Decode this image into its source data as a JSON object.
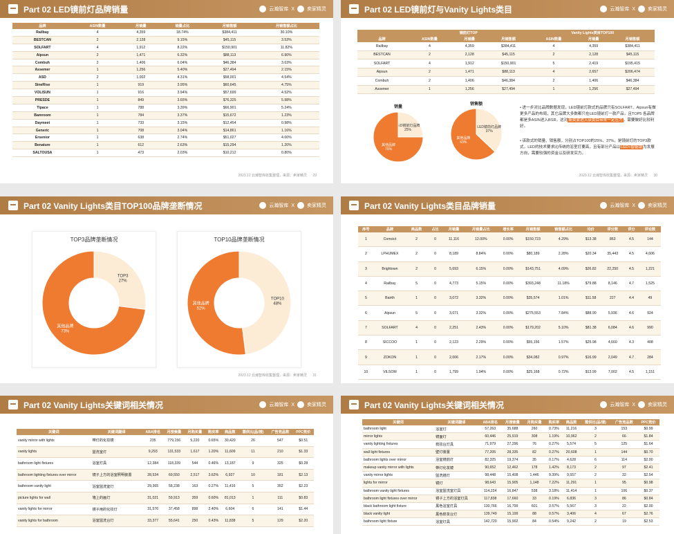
{
  "common": {
    "logo1": "云瀚智库",
    "sep": "X",
    "logo2": "卖家精灵",
    "footer": "2023.12 云瀚智库收集整理，来源：卖家精灵"
  },
  "slide1": {
    "title": "Part 02 LED镜前灯品牌销量",
    "page": "29",
    "headers": [
      "品牌",
      "ASIN数量",
      "月销量",
      "销量占比",
      "月销售额",
      "月销售额占比"
    ],
    "rows": [
      [
        "Railbay",
        "4",
        "4,359",
        "18.74%",
        "$384,411",
        "30.10%"
      ],
      [
        "BESTCAN",
        "2",
        "2,128",
        "9.15%",
        "$45,115",
        "3.53%"
      ],
      [
        "SOLFART",
        "4",
        "1,912",
        "8.22%",
        "$150,901",
        "11.82%"
      ],
      [
        "Aipsun",
        "2",
        "1,471",
        "6.32%",
        "$88,113",
        "6.90%"
      ],
      [
        "Combuh",
        "2",
        "1,406",
        "6.04%",
        "$46,384",
        "3.63%"
      ],
      [
        "Assemer",
        "1",
        "1,256",
        "5.40%",
        "$27,494",
        "2.15%"
      ],
      [
        "ASD",
        "2",
        "1,002",
        "4.31%",
        "$58,001",
        "4.54%"
      ],
      [
        "SineRise",
        "1",
        "919",
        "3.95%",
        "$60,645",
        "4.75%"
      ],
      [
        "VOLISUN",
        "1",
        "916",
        "3.94%",
        "$57,699",
        "4.52%"
      ],
      [
        "PRESDE",
        "1",
        "849",
        "3.65%",
        "$76,325",
        "5.98%"
      ],
      [
        "Tipace",
        "1",
        "788",
        "3.39%",
        "$66,901",
        "5.24%"
      ],
      [
        "Bamroom",
        "1",
        "784",
        "3.37%",
        "$15,672",
        "1.23%"
      ],
      [
        "Daymeet",
        "1",
        "733",
        "3.15%",
        "$12,454",
        "0.98%"
      ],
      [
        "Generic",
        "1",
        "708",
        "3.04%",
        "$14,861",
        "1.16%"
      ],
      [
        "Ersenior",
        "1",
        "638",
        "2.74%",
        "$51,027",
        "4.00%"
      ],
      [
        "Benature",
        "1",
        "612",
        "2.63%",
        "$15,294",
        "1.20%"
      ],
      [
        "SALTOUSA",
        "1",
        "473",
        "2.03%",
        "$10,212",
        "0.80%"
      ]
    ]
  },
  "slide2": {
    "title": "Part 02 LED镜前灯与Vanity Lights类目",
    "page": "30",
    "group1": "镜前灯TOP",
    "group2": "Vanity Lights类目TOP100",
    "headers": [
      "品牌",
      "ASIN数量",
      "月销量",
      "月销售额",
      "ASIN数量",
      "月销量",
      "月销售额"
    ],
    "rows": [
      [
        "Railbay",
        "4",
        "4,359",
        "$384,411",
        "4",
        "4,359",
        "$384,411"
      ],
      [
        "BESTCAN",
        "2",
        "2,128",
        "$45,115",
        "2",
        "2,128",
        "$45,115"
      ],
      [
        "SOLFART",
        "4",
        "1,912",
        "$150,901",
        "5",
        "2,419",
        "$195,415"
      ],
      [
        "Aipsun",
        "2",
        "1,471",
        "$88,113",
        "4",
        "2,657",
        "$206,474"
      ],
      [
        "Combuh",
        "2",
        "1,406",
        "$46,384",
        "2",
        "1,406",
        "$46,384"
      ],
      [
        "Assemer",
        "1",
        "1,256",
        "$27,494",
        "1",
        "1,256",
        "$27,494"
      ]
    ],
    "pie1_title": "销量",
    "pie2_title": "销售额",
    "pie1": [
      {
        "label": "LED镜前灯品牌",
        "value": 25
      },
      {
        "label": "其他品牌",
        "value": 75
      }
    ],
    "pie2": [
      {
        "label": "LED镜前灯品牌",
        "value": 37
      },
      {
        "label": "其他品牌",
        "value": 63
      }
    ],
    "bullet1": "进一步对比品牌数据发现，LED镜前灯款式的品牌只有SOLFART、Aipsun有做更多产品的布局，其它品牌大多数都只在LED镜前灯一款产品，且TOP5 各品牌都是多ASIN进入BSR，这对",
    "bullet1_hl": "新卖家进入该类目带来一定压力",
    "bullet1_end": "，需要做好比较利好。",
    "bullet2": "该款式的销量、销售额，分别占TOP100的25%、37%，是镜前灯的TOP3款式，LED的技术要求比传统的浴室灯要高，且有部分产品以",
    "bullet2_hl": "LED+智能镜",
    "bullet2_end": "为发展方向，需要较强的资金以及研发实力。"
  },
  "slide3": {
    "title": "Part 02 Vanity Lights类目TOP100品牌垄断情况",
    "page": "31",
    "chart_data": [
      {
        "type": "pie",
        "title": "TOP3品牌垄断情况",
        "slices": [
          {
            "label": "TOP3",
            "value": 27,
            "color": "#fcecd6"
          },
          {
            "label": "其他品牌",
            "value": 73,
            "color": "#ee7b30"
          }
        ]
      },
      {
        "type": "pie",
        "title": "TOP10品牌垄断情况",
        "slices": [
          {
            "label": "TOP10",
            "value": 48,
            "color": "#fcecd6"
          },
          {
            "label": "其他品牌",
            "value": 52,
            "color": "#ee7b30"
          }
        ]
      }
    ]
  },
  "slide4": {
    "title": "Part 02 Vanity Lights类目品牌销量",
    "page": "32",
    "headers": [
      "序号",
      "品牌",
      "商品数",
      "占比",
      "月销量",
      "月销量占比",
      "增长率",
      "月销售额",
      "销售额占比",
      "均价",
      "评分数",
      "评分",
      "评论数"
    ],
    "rows": [
      [
        "1",
        "Comcict",
        "2",
        "0",
        "11,116",
        "12.00%",
        "0.00%",
        "$150,723",
        "4.29%",
        "$13.38",
        "863",
        "4.5",
        "144"
      ],
      [
        "2",
        "LPHUMEX",
        "2",
        "0",
        "8,189",
        "8.84%",
        "0.00%",
        "$80,189",
        "2.28%",
        "$20.34",
        "35,443",
        "4.5",
        "4,606"
      ],
      [
        "3",
        "Brightown",
        "2",
        "0",
        "5,693",
        "6.15%",
        "0.00%",
        "$143,751",
        "4.09%",
        "$26.82",
        "22,250",
        "4.5",
        "1,221"
      ],
      [
        "4",
        "Railbay",
        "5",
        "0",
        "4,773",
        "5.15%",
        "0.00%",
        "$393,248",
        "11.18%",
        "$79.88",
        "8,146",
        "4.7",
        "1,525"
      ],
      [
        "5",
        "Bairth",
        "1",
        "0",
        "3,072",
        "3.32%",
        "0.00%",
        "$35,574",
        "1.01%",
        "$11.58",
        "227",
        "4.4",
        "49"
      ],
      [
        "6",
        "Aipsun",
        "5",
        "0",
        "3,071",
        "3.32%",
        "0.00%",
        "$275,553",
        "7.84%",
        "$88.90",
        "5,936",
        "4.6",
        "924"
      ],
      [
        "7",
        "SOLFART",
        "4",
        "0",
        "2,251",
        "2.43%",
        "0.00%",
        "$179,202",
        "5.10%",
        "$81.38",
        "6,084",
        "4.6",
        "990"
      ],
      [
        "8",
        "SICCOO",
        "1",
        "0",
        "2,123",
        "2.29%",
        "0.00%",
        "$55,156",
        "1.57%",
        "$25.98",
        "4,660",
        "4.3",
        "408"
      ],
      [
        "9",
        "ZOKON",
        "1",
        "0",
        "2,006",
        "2.17%",
        "0.00%",
        "$34,082",
        "0.97%",
        "$16.99",
        "2,049",
        "4.7",
        "284"
      ],
      [
        "10",
        "VILSOM",
        "1",
        "0",
        "1,799",
        "1.94%",
        "0.00%",
        "$25,168",
        "0.72%",
        "$13.99",
        "7,002",
        "4.5",
        "1,151"
      ]
    ]
  },
  "slide5": {
    "title": "Part 02 Vanity Lights关键词相关情况",
    "headers": [
      "关键词",
      "关键词翻译",
      "ABA排名",
      "月搜索量",
      "月购买量",
      "购买率",
      "商品数",
      "需供比(品/搜)",
      "广告竞品数",
      "PPC竞价"
    ],
    "rows": [
      [
        "vanity mirror with lights",
        "带灯的化妆镜",
        "235",
        "779,156",
        "5,220",
        "0.65%",
        "30,420",
        "26",
        "547",
        "$0.51"
      ],
      [
        "vanity lights",
        "盥洗室灯",
        "9,293",
        "131,533",
        "1,617",
        "1.20%",
        "11,609",
        "11",
        "210",
        "$1.33"
      ],
      [
        "bathroom light fixtures",
        "浴室灯具",
        "12,384",
        "118,339",
        "544",
        "0.46%",
        "13,187",
        "9",
        "325",
        "$0.28"
      ],
      [
        "bathroom lighting fixtures over mirror",
        "镜子上方的浴室照明装置",
        "28,534",
        "69,550",
        "2,517",
        "3.62%",
        "6,927",
        "10",
        "181",
        "$2.13"
      ],
      [
        "bathroom vanity light",
        "浴室盥洗室灯",
        "29,365",
        "58,238",
        "163",
        "0.27%",
        "11,416",
        "5",
        "352",
        "$2.23"
      ],
      [
        "picture lights for wall",
        "墙上的画灯",
        "31,021",
        "59,913",
        "359",
        "0.60%",
        "81,013",
        "1",
        "111",
        "$0.83"
      ],
      [
        "vanity lights for mirror",
        "镜子用的化妆灯",
        "31,576",
        "37,458",
        "898",
        "2.40%",
        "6,604",
        "6",
        "141",
        "$1.44"
      ],
      [
        "vanity lights for bathroom",
        "浴室盥洗台灯",
        "33,377",
        "55,641",
        "250",
        "0.43%",
        "11,838",
        "5",
        "129",
        "$2.20"
      ]
    ]
  },
  "slide6": {
    "title": "Part 02 Vanity Lights关键词相关情况",
    "headers": [
      "关键词",
      "关键词翻译",
      "ABA排名",
      "月搜索量",
      "月购买量",
      "购买率",
      "商品数",
      "需供比(品/搜)",
      "广告竞品数",
      "PPC竞价"
    ],
    "rows": [
      [
        "bathroom light",
        "浴室灯",
        "57,263",
        "35,688",
        "260",
        "0.73%",
        "11,216",
        "3",
        "153",
        "$0.99"
      ],
      [
        "mirror lights",
        "镜面灯",
        "60,446",
        "25,919",
        "308",
        "1.19%",
        "10,962",
        "2",
        "66",
        "$1.84"
      ],
      [
        "vanity lighting fixtures",
        "梳妆台灯具",
        "71,979",
        "27,296",
        "76",
        "0.27%",
        "5,574",
        "5",
        "125",
        "$1.64"
      ],
      [
        "wall light fixtures",
        "壁灯装置",
        "77,205",
        "28,335",
        "82",
        "0.27%",
        "20,608",
        "1",
        "144",
        "$0.70"
      ],
      [
        "bathroom lights over mirror",
        "浴室镜前灯",
        "82,325",
        "19,374",
        "35",
        "0.17%",
        "4,628",
        "6",
        "114",
        "$2.00"
      ],
      [
        "makeup vanity mirror with lights",
        "带灯化妆镜",
        "90,652",
        "12,462",
        "178",
        "1.42%",
        "8,173",
        "2",
        "97",
        "$2.41"
      ],
      [
        "vanity mirror lights",
        "盥洗镜灯",
        "98,448",
        "15,408",
        "1,446",
        "9.39%",
        "9,557",
        "2",
        "32",
        "$2.54"
      ],
      [
        "lights for mirror",
        "镜灯",
        "98,643",
        "15,905",
        "1,148",
        "7.22%",
        "11,291",
        "1",
        "95",
        "$0.98"
      ],
      [
        "bathroom vanity light fixtures",
        "浴室盥洗室灯具",
        "114,224",
        "16,847",
        "538",
        "3.18%",
        "11,414",
        "1",
        "106",
        "$0.37"
      ],
      [
        "bathroom light fixtures over mirror",
        "镜子上方的浴室灯具",
        "117,838",
        "17,660",
        "33",
        "0.19%",
        "6,836",
        "3",
        "86",
        "$0.84"
      ],
      [
        "black bathroom light fixture",
        "黑色浴室灯具",
        "130,766",
        "16,799",
        "601",
        "3.57%",
        "5,567",
        "3",
        "22",
        "$2.00"
      ],
      [
        "black vanity light",
        "黑色梳妆台灯",
        "139,749",
        "15,199",
        "88",
        "0.57%",
        "3,406",
        "4",
        "67",
        "$2.76"
      ],
      [
        "bathroom light fixture",
        "浴室灯具",
        "142,720",
        "15,902",
        "84",
        "0.54%",
        "9,242",
        "2",
        "19",
        "$2.53"
      ]
    ]
  }
}
